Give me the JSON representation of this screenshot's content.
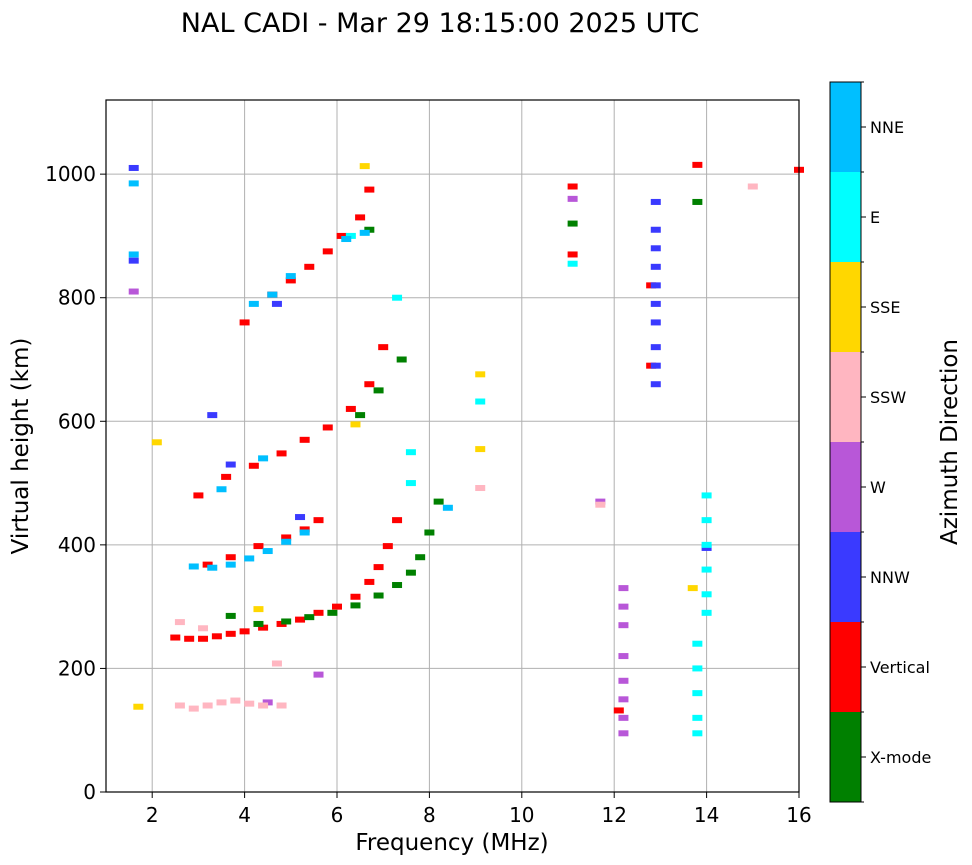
{
  "chart_data": {
    "type": "scatter",
    "title": "NAL CADI - Mar 29 18:15:00 2025 UTC",
    "xlabel": "Frequency (MHz)",
    "ylabel": "Virtual height (km)",
    "xlim": [
      1,
      16
    ],
    "ylim": [
      0,
      1120
    ],
    "xticks": [
      2,
      4,
      6,
      8,
      10,
      12,
      14,
      16
    ],
    "yticks": [
      0,
      200,
      400,
      600,
      800,
      1000
    ],
    "grid": true,
    "colorbar": {
      "title": "Azimuth Direction",
      "position": "right",
      "categories": [
        {
          "name": "X-mode",
          "color": "#008000"
        },
        {
          "name": "Vertical",
          "color": "#ff0000"
        },
        {
          "name": "NNW",
          "color": "#3a3aff"
        },
        {
          "name": "W",
          "color": "#b857d8"
        },
        {
          "name": "SSW",
          "color": "#ffb6c1"
        },
        {
          "name": "SSE",
          "color": "#ffd700"
        },
        {
          "name": "E",
          "color": "#00ffff"
        },
        {
          "name": "NNE",
          "color": "#00bfff"
        }
      ]
    },
    "series": [
      {
        "name": "Vertical",
        "points": [
          [
            2.5,
            250
          ],
          [
            2.8,
            248
          ],
          [
            3.1,
            248
          ],
          [
            3.4,
            252
          ],
          [
            3.7,
            256
          ],
          [
            4.0,
            260
          ],
          [
            4.4,
            266
          ],
          [
            4.8,
            272
          ],
          [
            5.2,
            279
          ],
          [
            5.6,
            290
          ],
          [
            6.0,
            300
          ],
          [
            6.4,
            316
          ],
          [
            6.7,
            340
          ],
          [
            6.9,
            364
          ],
          [
            7.1,
            398
          ],
          [
            7.3,
            440
          ],
          [
            3.2,
            368
          ],
          [
            3.7,
            380
          ],
          [
            4.3,
            398
          ],
          [
            4.9,
            412
          ],
          [
            5.3,
            425
          ],
          [
            5.6,
            440
          ],
          [
            3.0,
            480
          ],
          [
            3.6,
            510
          ],
          [
            4.2,
            528
          ],
          [
            4.8,
            548
          ],
          [
            5.3,
            570
          ],
          [
            5.8,
            590
          ],
          [
            6.3,
            620
          ],
          [
            6.7,
            660
          ],
          [
            7.0,
            720
          ],
          [
            4.0,
            760
          ],
          [
            4.6,
            805
          ],
          [
            5.0,
            828
          ],
          [
            5.4,
            850
          ],
          [
            5.8,
            875
          ],
          [
            6.1,
            900
          ],
          [
            6.5,
            930
          ],
          [
            6.7,
            975
          ],
          [
            11.1,
            870
          ],
          [
            11.1,
            980
          ],
          [
            12.8,
            820
          ],
          [
            12.8,
            690
          ],
          [
            13.8,
            1015
          ],
          [
            16.0,
            1007
          ],
          [
            12.1,
            132
          ]
        ]
      },
      {
        "name": "X-mode",
        "points": [
          [
            3.7,
            285
          ],
          [
            4.3,
            272
          ],
          [
            4.9,
            276
          ],
          [
            5.4,
            283
          ],
          [
            5.9,
            290
          ],
          [
            6.4,
            302
          ],
          [
            6.9,
            318
          ],
          [
            7.3,
            335
          ],
          [
            7.6,
            355
          ],
          [
            7.8,
            380
          ],
          [
            8.0,
            420
          ],
          [
            8.2,
            470
          ],
          [
            6.5,
            610
          ],
          [
            6.9,
            650
          ],
          [
            7.4,
            700
          ],
          [
            6.7,
            910
          ],
          [
            13.8,
            955
          ],
          [
            11.1,
            920
          ]
        ]
      },
      {
        "name": "NNW",
        "points": [
          [
            12.9,
            955
          ],
          [
            12.9,
            910
          ],
          [
            12.9,
            880
          ],
          [
            12.9,
            850
          ],
          [
            12.9,
            820
          ],
          [
            12.9,
            790
          ],
          [
            12.9,
            760
          ],
          [
            12.9,
            720
          ],
          [
            12.9,
            690
          ],
          [
            12.9,
            660
          ],
          [
            1.6,
            1010
          ],
          [
            1.6,
            860
          ],
          [
            3.3,
            610
          ],
          [
            4.7,
            790
          ],
          [
            3.7,
            530
          ],
          [
            5.2,
            445
          ],
          [
            14.0,
            395
          ]
        ]
      },
      {
        "name": "W",
        "points": [
          [
            12.2,
            330
          ],
          [
            12.2,
            300
          ],
          [
            12.2,
            270
          ],
          [
            12.2,
            220
          ],
          [
            12.2,
            180
          ],
          [
            12.2,
            150
          ],
          [
            12.2,
            120
          ],
          [
            12.2,
            95
          ],
          [
            1.6,
            810
          ],
          [
            11.1,
            960
          ],
          [
            4.5,
            145
          ],
          [
            5.6,
            190
          ],
          [
            11.7,
            470
          ]
        ]
      },
      {
        "name": "SSW",
        "points": [
          [
            2.6,
            140
          ],
          [
            2.9,
            135
          ],
          [
            3.2,
            140
          ],
          [
            3.5,
            145
          ],
          [
            3.8,
            148
          ],
          [
            4.1,
            143
          ],
          [
            4.4,
            140
          ],
          [
            4.8,
            140
          ],
          [
            15.0,
            980
          ],
          [
            9.1,
            492
          ],
          [
            11.7,
            465
          ],
          [
            2.6,
            275
          ],
          [
            3.1,
            265
          ],
          [
            4.7,
            208
          ]
        ]
      },
      {
        "name": "SSE",
        "points": [
          [
            9.1,
            555
          ],
          [
            9.1,
            676
          ],
          [
            2.1,
            566
          ],
          [
            6.6,
            1013
          ],
          [
            4.3,
            296
          ],
          [
            13.7,
            330
          ],
          [
            6.4,
            595
          ],
          [
            1.7,
            138
          ]
        ]
      },
      {
        "name": "E",
        "points": [
          [
            13.8,
            240
          ],
          [
            13.8,
            200
          ],
          [
            13.8,
            160
          ],
          [
            13.8,
            120
          ],
          [
            13.8,
            95
          ],
          [
            14.0,
            480
          ],
          [
            14.0,
            440
          ],
          [
            14.0,
            400
          ],
          [
            14.0,
            360
          ],
          [
            14.0,
            320
          ],
          [
            14.0,
            290
          ],
          [
            9.1,
            632
          ],
          [
            7.6,
            550
          ],
          [
            7.6,
            500
          ],
          [
            7.3,
            800
          ],
          [
            6.3,
            900
          ],
          [
            11.1,
            855
          ]
        ]
      },
      {
        "name": "NNE",
        "points": [
          [
            2.9,
            365
          ],
          [
            3.3,
            363
          ],
          [
            3.7,
            368
          ],
          [
            4.1,
            378
          ],
          [
            4.5,
            390
          ],
          [
            4.9,
            405
          ],
          [
            5.3,
            420
          ],
          [
            4.2,
            790
          ],
          [
            4.6,
            805
          ],
          [
            5.0,
            835
          ],
          [
            6.2,
            895
          ],
          [
            6.6,
            905
          ],
          [
            3.5,
            490
          ],
          [
            4.4,
            540
          ],
          [
            1.6,
            985
          ],
          [
            1.6,
            870
          ],
          [
            8.4,
            460
          ]
        ]
      }
    ]
  }
}
